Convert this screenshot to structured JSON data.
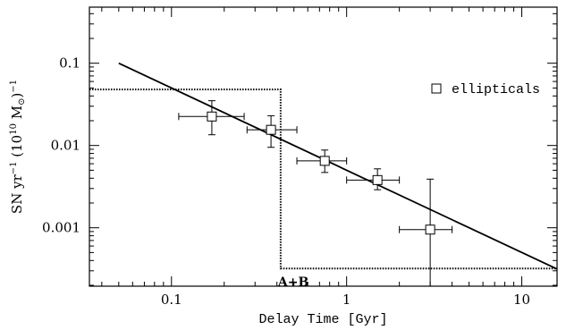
{
  "chart_data": {
    "type": "scatter",
    "title": "",
    "xlabel": "Delay Time [Gyr]",
    "ylabel": "SN yr⁻¹ (10¹⁰ M⊙)⁻¹",
    "ylabel_parts": {
      "base": "SN yr",
      "exp1": "−1",
      "mid": " (10",
      "exp2": "10",
      "mass": " M",
      "sun_sub": "⊙",
      "close": ")",
      "exp3": "−1"
    },
    "x_scale": "log",
    "y_scale": "log",
    "xlim": [
      0.034,
      15.9
    ],
    "ylim": [
      0.000195,
      0.48
    ],
    "grid": false,
    "legend_position": "top-right",
    "x_ticks": [
      {
        "value": 0.1,
        "label": "0.1"
      },
      {
        "value": 1,
        "label": "1"
      },
      {
        "value": 10,
        "label": "10"
      }
    ],
    "y_ticks": [
      {
        "value": 0.1,
        "label": "0.1"
      },
      {
        "value": 0.01,
        "label": "0.01"
      },
      {
        "value": 0.001,
        "label": "0.001"
      }
    ],
    "series": [
      {
        "name": "ellipticals",
        "kind": "points",
        "marker": "open-square",
        "points": [
          {
            "x": 0.17,
            "y": 0.0225,
            "xerr": [
              0.11,
              0.26
            ],
            "yerr": [
              0.0135,
              0.035
            ]
          },
          {
            "x": 0.37,
            "y": 0.0155,
            "xerr": [
              0.27,
              0.52
            ],
            "yerr": [
              0.0095,
              0.023
            ]
          },
          {
            "x": 0.75,
            "y": 0.0065,
            "xerr": [
              0.52,
              1.0
            ],
            "yerr": [
              0.0047,
              0.0088
            ]
          },
          {
            "x": 1.5,
            "y": 0.0038,
            "xerr": [
              1.0,
              2.0
            ],
            "yerr": [
              0.0029,
              0.0052
            ]
          },
          {
            "x": 3.0,
            "y": 0.00095,
            "xerr": [
              2.0,
              4.0
            ],
            "yerr": [
              0.000195,
              0.0039
            ]
          }
        ]
      },
      {
        "kind": "line",
        "points": [
          {
            "x": 0.05,
            "y": 0.1
          },
          {
            "x": 15.9,
            "y": 0.000315
          }
        ]
      },
      {
        "kind": "step",
        "label": "A+B",
        "points": [
          {
            "x": 0.034,
            "y": 0.048
          },
          {
            "x": 0.42,
            "y": 0.048
          },
          {
            "x": 0.42,
            "y": 0.00032
          },
          {
            "x": 15.9,
            "y": 0.00032
          }
        ],
        "label_at": {
          "x": 0.42,
          "y": 0.00032
        }
      }
    ]
  }
}
